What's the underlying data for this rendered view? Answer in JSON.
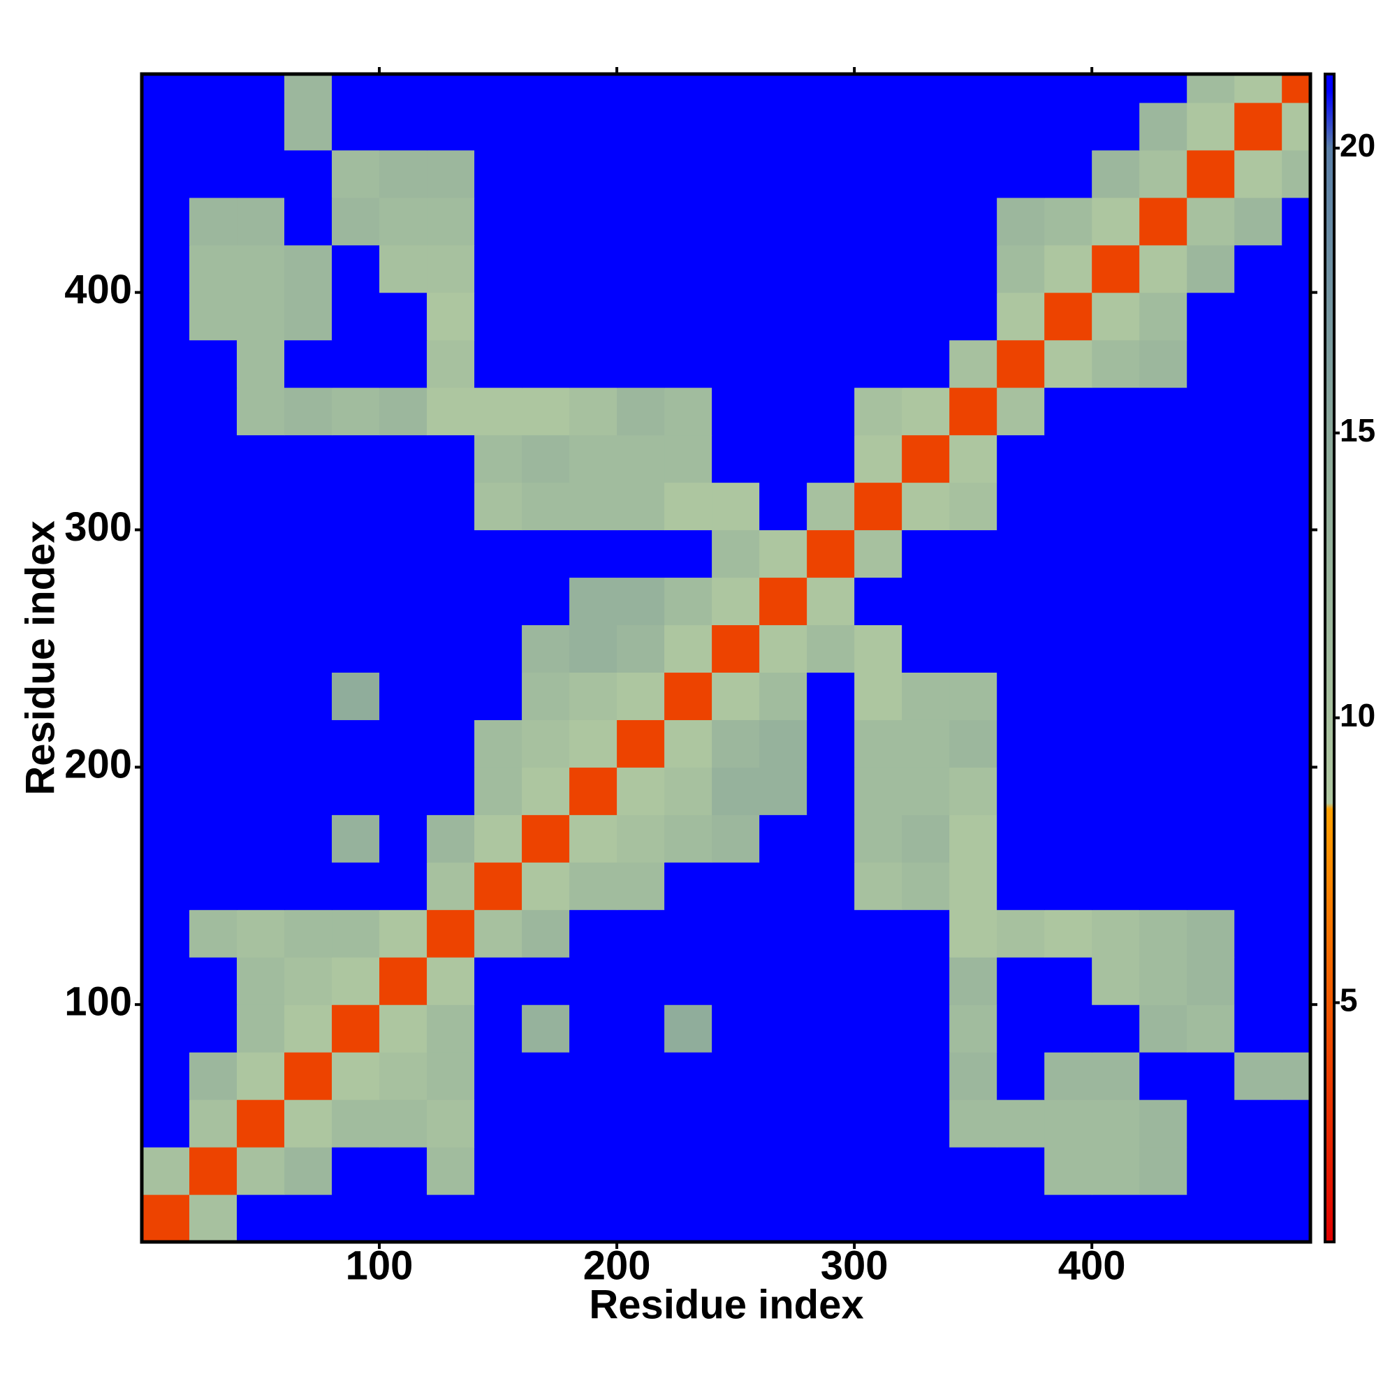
{
  "chart_data": {
    "type": "heatmap",
    "xlabel": "Residue index",
    "ylabel": "Residue index",
    "bins": [
      0,
      20,
      40,
      60,
      80,
      100,
      120,
      140,
      160,
      180,
      200,
      220,
      240,
      260,
      280,
      300,
      320,
      340,
      360,
      380,
      400,
      420,
      440,
      460,
      480,
      492
    ],
    "z": [
      [
        4,
        10,
        21,
        21,
        21,
        21,
        21,
        21,
        21,
        21,
        21,
        21,
        21,
        21,
        21,
        21,
        21,
        21,
        21,
        21,
        21,
        21,
        21,
        21,
        21
      ],
      [
        10,
        4,
        10,
        12,
        21,
        21,
        11,
        21,
        21,
        21,
        21,
        21,
        21,
        21,
        21,
        21,
        21,
        21,
        21,
        11,
        11,
        12,
        21,
        21,
        21
      ],
      [
        21,
        10,
        4,
        9,
        11,
        11,
        10,
        21,
        21,
        21,
        21,
        21,
        21,
        21,
        21,
        21,
        21,
        11,
        11,
        11,
        11,
        12,
        21,
        21,
        21
      ],
      [
        21,
        12,
        9,
        4,
        9,
        10,
        11,
        21,
        21,
        21,
        21,
        21,
        21,
        21,
        21,
        21,
        21,
        12,
        21,
        12,
        12,
        21,
        21,
        12,
        12
      ],
      [
        21,
        21,
        11,
        9,
        4,
        9,
        11,
        21,
        13,
        21,
        21,
        14,
        21,
        21,
        21,
        21,
        21,
        11,
        21,
        21,
        21,
        12,
        11,
        21,
        21
      ],
      [
        21,
        21,
        11,
        10,
        9,
        4,
        9,
        21,
        21,
        21,
        21,
        21,
        21,
        21,
        21,
        21,
        21,
        12,
        21,
        21,
        10,
        11,
        12,
        21,
        21
      ],
      [
        21,
        11,
        10,
        11,
        11,
        9,
        4,
        10,
        12,
        21,
        21,
        21,
        21,
        21,
        21,
        21,
        21,
        9,
        10,
        9,
        10,
        11,
        12,
        21,
        21
      ],
      [
        21,
        21,
        21,
        21,
        21,
        21,
        10,
        4,
        9,
        11,
        11,
        21,
        21,
        21,
        21,
        10,
        11,
        9,
        21,
        21,
        21,
        21,
        21,
        21,
        21
      ],
      [
        21,
        21,
        21,
        21,
        13,
        21,
        12,
        9,
        4,
        9,
        10,
        11,
        12,
        21,
        21,
        11,
        12,
        9,
        21,
        21,
        21,
        21,
        21,
        21,
        21
      ],
      [
        21,
        21,
        21,
        21,
        21,
        21,
        21,
        11,
        9,
        4,
        9,
        10,
        13,
        13,
        21,
        11,
        11,
        10,
        21,
        21,
        21,
        21,
        21,
        21,
        21
      ],
      [
        21,
        21,
        21,
        21,
        21,
        21,
        21,
        11,
        10,
        9,
        4,
        9,
        12,
        13,
        21,
        11,
        11,
        12,
        21,
        21,
        21,
        21,
        21,
        21,
        21
      ],
      [
        21,
        21,
        21,
        21,
        14,
        21,
        21,
        21,
        11,
        10,
        9,
        4,
        9,
        11,
        21,
        9,
        11,
        11,
        21,
        21,
        21,
        21,
        21,
        21,
        21
      ],
      [
        21,
        21,
        21,
        21,
        21,
        21,
        21,
        21,
        12,
        13,
        12,
        9,
        4,
        9,
        11,
        9,
        21,
        21,
        21,
        21,
        21,
        21,
        21,
        21,
        21
      ],
      [
        21,
        21,
        21,
        21,
        21,
        21,
        21,
        21,
        21,
        13,
        13,
        11,
        9,
        4,
        9,
        21,
        21,
        21,
        21,
        21,
        21,
        21,
        21,
        21,
        21
      ],
      [
        21,
        21,
        21,
        21,
        21,
        21,
        21,
        21,
        21,
        21,
        21,
        21,
        11,
        9,
        4,
        10,
        21,
        21,
        21,
        21,
        21,
        21,
        21,
        21,
        21
      ],
      [
        21,
        21,
        21,
        21,
        21,
        21,
        21,
        10,
        11,
        11,
        11,
        9,
        9,
        21,
        10,
        4,
        9,
        10,
        21,
        21,
        21,
        21,
        21,
        21,
        21
      ],
      [
        21,
        21,
        21,
        21,
        21,
        21,
        21,
        11,
        12,
        11,
        11,
        11,
        21,
        21,
        21,
        9,
        4,
        9,
        21,
        21,
        21,
        21,
        21,
        21,
        21
      ],
      [
        21,
        21,
        11,
        12,
        11,
        12,
        9,
        9,
        9,
        10,
        12,
        11,
        21,
        21,
        21,
        10,
        9,
        4,
        10,
        21,
        21,
        21,
        21,
        21,
        21
      ],
      [
        21,
        21,
        11,
        21,
        21,
        21,
        10,
        21,
        21,
        21,
        21,
        21,
        21,
        21,
        21,
        21,
        21,
        10,
        4,
        9,
        11,
        12,
        21,
        21,
        21
      ],
      [
        21,
        11,
        11,
        12,
        21,
        21,
        9,
        21,
        21,
        21,
        21,
        21,
        21,
        21,
        21,
        21,
        21,
        21,
        9,
        4,
        9,
        11,
        21,
        21,
        21
      ],
      [
        21,
        11,
        11,
        12,
        21,
        10,
        10,
        21,
        21,
        21,
        21,
        21,
        21,
        21,
        21,
        21,
        21,
        21,
        11,
        9,
        4,
        9,
        12,
        21,
        21
      ],
      [
        21,
        12,
        12,
        21,
        12,
        11,
        11,
        21,
        21,
        21,
        21,
        21,
        21,
        21,
        21,
        21,
        21,
        21,
        12,
        11,
        9,
        4,
        10,
        12,
        21
      ],
      [
        21,
        21,
        21,
        21,
        11,
        12,
        12,
        21,
        21,
        21,
        21,
        21,
        21,
        21,
        21,
        21,
        21,
        21,
        21,
        21,
        12,
        10,
        4,
        9,
        11
      ],
      [
        21,
        21,
        21,
        12,
        21,
        21,
        21,
        21,
        21,
        21,
        21,
        21,
        21,
        21,
        21,
        21,
        21,
        21,
        21,
        21,
        21,
        12,
        9,
        4,
        9
      ],
      [
        21,
        21,
        21,
        12,
        21,
        21,
        21,
        21,
        21,
        21,
        21,
        21,
        21,
        21,
        21,
        21,
        21,
        21,
        21,
        21,
        21,
        21,
        11,
        9,
        4
      ]
    ],
    "xlim": [
      0,
      492
    ],
    "ylim": [
      0,
      492
    ],
    "xticks": [
      100,
      200,
      300,
      400
    ],
    "yticks": [
      100,
      200,
      300,
      400
    ],
    "zlim": [
      0.8,
      21.3
    ],
    "zticks": [
      5,
      10,
      15,
      20
    ],
    "colorscale": [
      [
        0.8,
        "#e00000"
      ],
      [
        8.4,
        "#ffa000"
      ],
      [
        8.5,
        "#b0c8a0"
      ],
      [
        15,
        "#8aa89a"
      ],
      [
        20,
        "#5a7fa8"
      ],
      [
        21,
        "#0000ff"
      ],
      [
        21.3,
        "#0000ff"
      ]
    ]
  }
}
